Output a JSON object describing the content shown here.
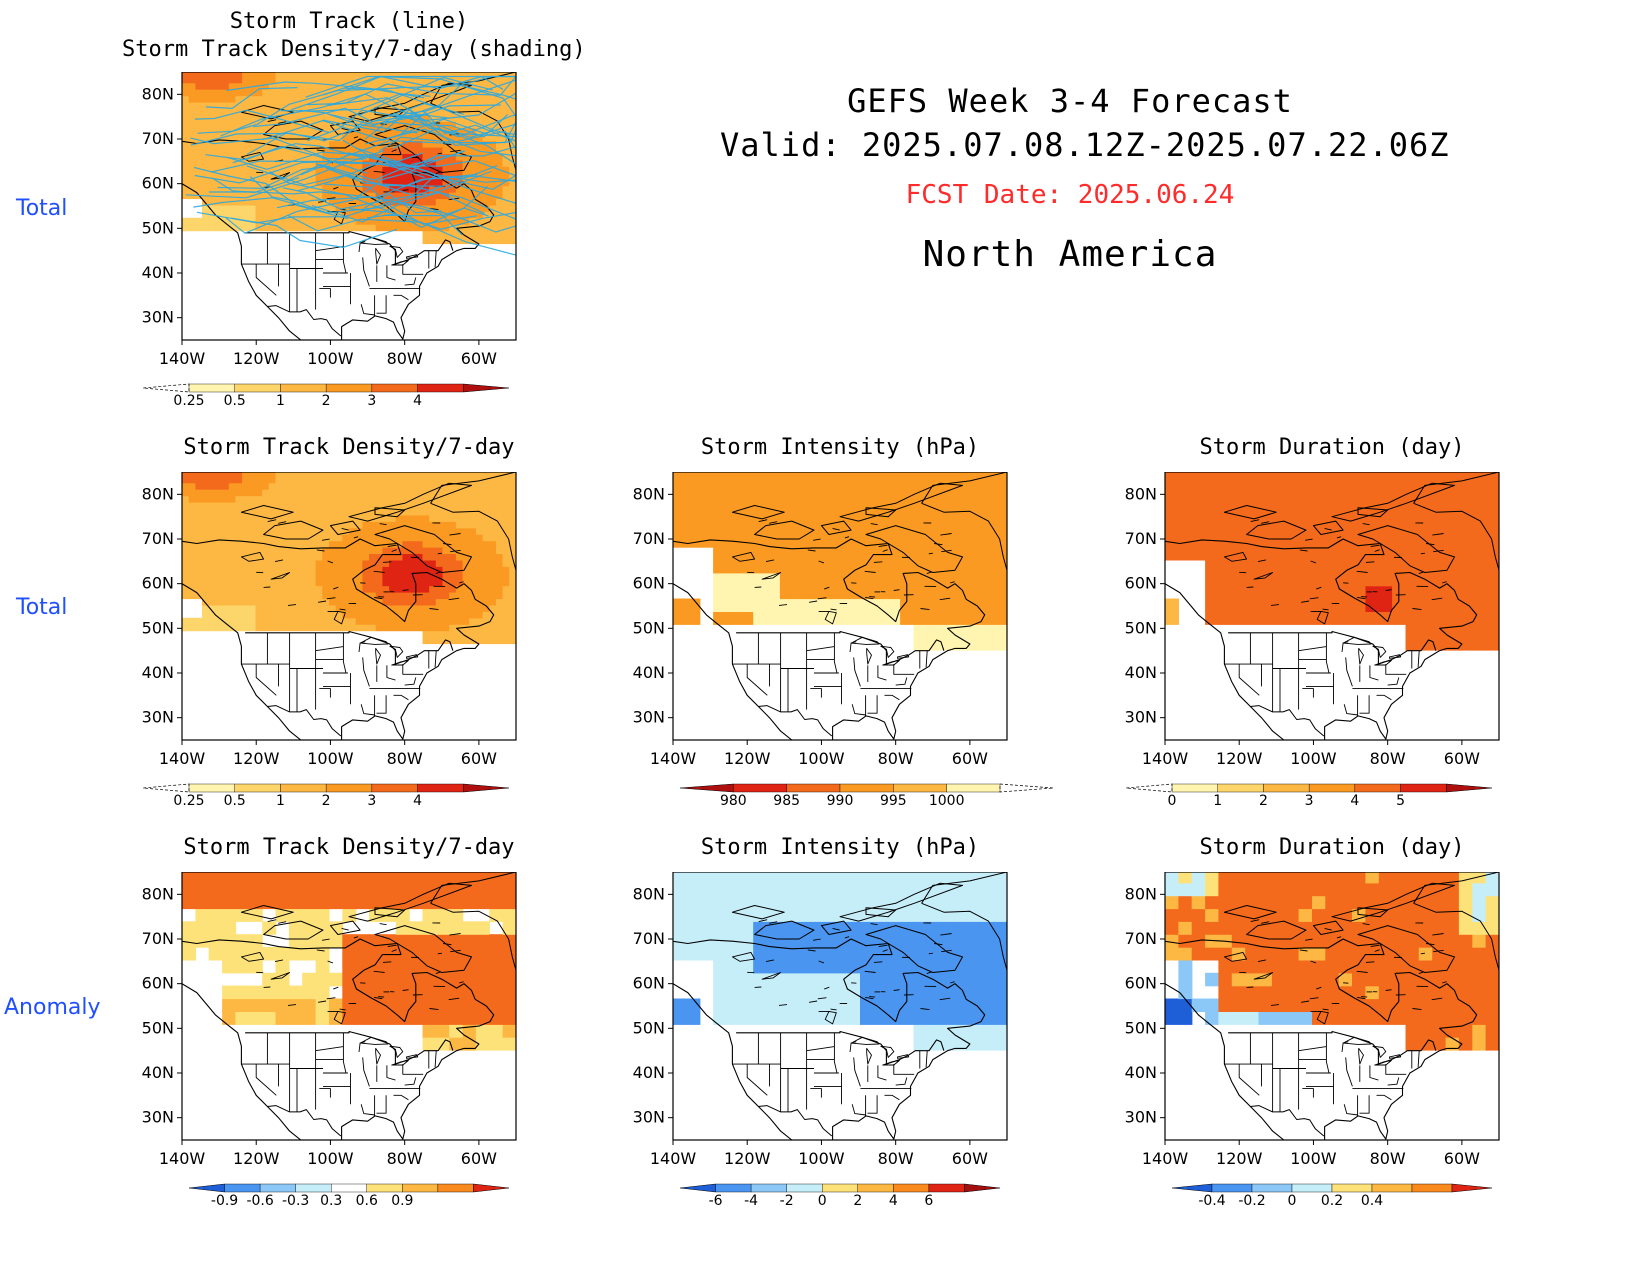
{
  "header": {
    "title_line1": "GEFS Week 3-4 Forecast",
    "title_line2": "Valid: 2025.07.08.12Z-2025.07.22.06Z",
    "fcst_date": "FCST Date: 2025.06.24",
    "region": "North America"
  },
  "row_labels": [
    "Total",
    "Total",
    "Anomaly"
  ],
  "map_axes": {
    "lat_ticks": [
      "80N",
      "70N",
      "60N",
      "50N",
      "40N",
      "30N"
    ],
    "lon_ticks": [
      "140W",
      "120W",
      "100W",
      "80W",
      "60W"
    ]
  },
  "colors": {
    "title_blue": "#1f4fff",
    "fcst_red": "#ff2a2a",
    "track_line": "#2aa8e0"
  },
  "chart_data": [
    {
      "id": "track-total",
      "type": "heatmap",
      "title": "Storm Track (line)\nStorm Track Density/7-day (shading)",
      "overlay": "storm track lines",
      "colorbar": {
        "labels": [
          "0.25",
          "0.5",
          "1",
          "2",
          "3",
          "4"
        ],
        "colors": [
          "#fff5b0",
          "#fcd56b",
          "#fdb844",
          "#fb9a22",
          "#f46a1c",
          "#e02414",
          "#b00f0f"
        ],
        "left_dashed": true
      },
      "scheme": "density"
    },
    {
      "id": "density-total",
      "type": "heatmap",
      "title": "Storm Track Density/7-day",
      "colorbar": {
        "labels": [
          "0.25",
          "0.5",
          "1",
          "2",
          "3",
          "4"
        ],
        "colors": [
          "#fff5b0",
          "#fcd56b",
          "#fdb844",
          "#fb9a22",
          "#f46a1c",
          "#e02414",
          "#b00f0f"
        ],
        "left_dashed": true
      },
      "scheme": "density"
    },
    {
      "id": "intensity-total",
      "type": "heatmap",
      "title": "Storm Intensity (hPa)",
      "colorbar": {
        "labels": [
          "980",
          "985",
          "990",
          "995",
          "1000"
        ],
        "colors": [
          "#b00f0f",
          "#e02414",
          "#f46a1c",
          "#fb9a22",
          "#fdb844",
          "#fff5b0"
        ],
        "right_dashed": true
      },
      "scheme": "intensity"
    },
    {
      "id": "duration-total",
      "type": "heatmap",
      "title": "Storm Duration (day)",
      "colorbar": {
        "labels": [
          "0",
          "1",
          "2",
          "3",
          "4",
          "5"
        ],
        "colors": [
          "#fff5b0",
          "#fcd56b",
          "#fdb844",
          "#fb9a22",
          "#f46a1c",
          "#e02414",
          "#b00f0f"
        ],
        "left_dashed": true
      },
      "scheme": "duration"
    },
    {
      "id": "density-anomaly",
      "type": "heatmap",
      "title": "Storm Track Density/7-day",
      "colorbar": {
        "labels": [
          "-0.9",
          "-0.6",
          "-0.3",
          "0.3",
          "0.6",
          "0.9"
        ],
        "colors": [
          "#1e5fd8",
          "#4a95f0",
          "#8cc8f7",
          "#c6eef9",
          "#ffffff",
          "#fde27a",
          "#fdb844",
          "#fb8a1e",
          "#e02414"
        ]
      },
      "scheme": "density_anom"
    },
    {
      "id": "intensity-anomaly",
      "type": "heatmap",
      "title": "Storm Intensity (hPa)",
      "colorbar": {
        "labels": [
          "-6",
          "-4",
          "-2",
          "0",
          "2",
          "4",
          "6"
        ],
        "colors": [
          "#1e5fd8",
          "#4a95f0",
          "#8cc8f7",
          "#c6eef9",
          "#fde27a",
          "#fdb844",
          "#fb8a1e",
          "#e02414",
          "#a50f0f"
        ]
      },
      "scheme": "intensity_anom"
    },
    {
      "id": "duration-anomaly",
      "type": "heatmap",
      "title": "Storm Duration (day)",
      "colorbar": {
        "labels": [
          "-0.4",
          "-0.2",
          "0",
          "0.2",
          "0.4"
        ],
        "colors": [
          "#1e5fd8",
          "#4a95f0",
          "#8cc8f7",
          "#c6eef9",
          "#fde27a",
          "#fdb844",
          "#fb8a1e",
          "#e02414"
        ]
      },
      "scheme": "duration_anom"
    }
  ]
}
